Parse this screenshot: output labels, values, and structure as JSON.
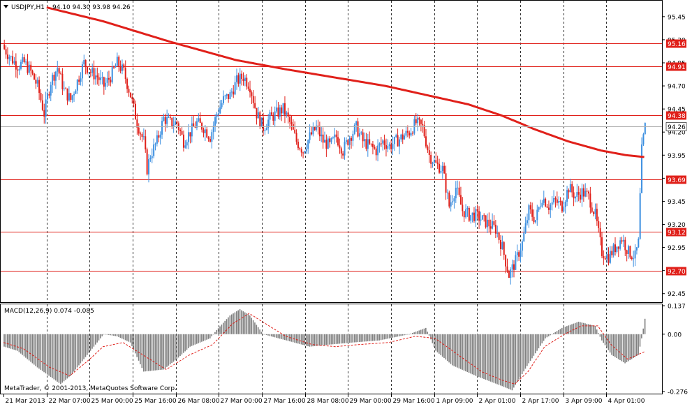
{
  "header": {
    "symbol": "USDJPY,H1",
    "ohlc": "94.10 94.30 93.98 94.26"
  },
  "macd_header": "MACD(12,26,9) 0.074 -0.085",
  "copyright": "MetaTrader, © 2001-2013, MetaQuotes Software Corp.",
  "colors": {
    "up_candle": "#3c8fe0",
    "down_candle": "#e0201a",
    "moving_average": "#e0201a",
    "level_line": "#e0201a",
    "histogram": "#808080",
    "signal_line": "#e0201a",
    "separator": "#000000"
  },
  "chart_data": [
    {
      "type": "candlestick",
      "symbol": "USDJPY",
      "timeframe": "H1",
      "ylim": [
        92.38,
        95.6
      ],
      "y_ticks": [
        "95.45",
        "95.20",
        "94.95",
        "94.70",
        "94.45",
        "94.20",
        "93.95",
        "93.70",
        "93.45",
        "93.20",
        "92.95",
        "92.70",
        "92.45"
      ],
      "x_labels": [
        "21 Mar 2013",
        "22 Mar 07:00",
        "25 Mar 00:00",
        "25 Mar 16:00",
        "26 Mar 08:00",
        "27 Mar 00:00",
        "27 Mar 16:00",
        "28 Mar 08:00",
        "29 Mar 00:00",
        "29 Mar 16:00",
        "1 Apr 09:00",
        "2 Apr 01:00",
        "2 Apr 17:00",
        "3 Apr 09:00",
        "4 Apr 01:00"
      ],
      "horizontal_levels": [
        "95.16",
        "94.91",
        "94.38",
        "93.69",
        "93.12",
        "92.70"
      ],
      "current_price": "94.26",
      "close_path": [
        [
          0,
          95.1
        ],
        [
          4,
          95.0
        ],
        [
          8,
          94.92
        ],
        [
          12,
          94.95
        ],
        [
          16,
          94.85
        ],
        [
          20,
          94.7
        ],
        [
          24,
          94.4
        ],
        [
          28,
          94.75
        ],
        [
          32,
          94.9
        ],
        [
          36,
          94.65
        ],
        [
          40,
          94.55
        ],
        [
          44,
          94.75
        ],
        [
          48,
          94.95
        ],
        [
          52,
          94.85
        ],
        [
          56,
          94.8
        ],
        [
          60,
          94.7
        ],
        [
          64,
          94.8
        ],
        [
          68,
          94.95
        ],
        [
          72,
          94.85
        ],
        [
          76,
          94.6
        ],
        [
          80,
          94.3
        ],
        [
          84,
          94.1
        ],
        [
          86,
          93.8
        ],
        [
          88,
          93.95
        ],
        [
          92,
          94.1
        ],
        [
          96,
          94.35
        ],
        [
          100,
          94.3
        ],
        [
          104,
          94.3
        ],
        [
          108,
          94.1
        ],
        [
          112,
          94.2
        ],
        [
          116,
          94.3
        ],
        [
          120,
          94.25
        ],
        [
          124,
          94.15
        ],
        [
          128,
          94.4
        ],
        [
          132,
          94.55
        ],
        [
          136,
          94.6
        ],
        [
          140,
          94.75
        ],
        [
          144,
          94.8
        ],
        [
          148,
          94.7
        ],
        [
          152,
          94.4
        ],
        [
          156,
          94.25
        ],
        [
          160,
          94.35
        ],
        [
          164,
          94.4
        ],
        [
          168,
          94.45
        ],
        [
          172,
          94.3
        ],
        [
          176,
          94.1
        ],
        [
          180,
          94.0
        ],
        [
          184,
          94.15
        ],
        [
          188,
          94.25
        ],
        [
          192,
          94.1
        ],
        [
          196,
          94.05
        ],
        [
          200,
          94.15
        ],
        [
          204,
          94.0
        ],
        [
          208,
          94.15
        ],
        [
          212,
          94.25
        ],
        [
          216,
          94.1
        ],
        [
          220,
          94.05
        ],
        [
          224,
          94.0
        ],
        [
          228,
          94.1
        ],
        [
          232,
          94.05
        ],
        [
          236,
          94.1
        ],
        [
          240,
          94.15
        ],
        [
          244,
          94.2
        ],
        [
          248,
          94.3
        ],
        [
          252,
          94.25
        ],
        [
          256,
          93.95
        ],
        [
          260,
          93.85
        ],
        [
          264,
          93.8
        ],
        [
          268,
          93.4
        ],
        [
          272,
          93.6
        ],
        [
          276,
          93.35
        ],
        [
          280,
          93.3
        ],
        [
          284,
          93.3
        ],
        [
          288,
          93.25
        ],
        [
          292,
          93.2
        ],
        [
          296,
          93.15
        ],
        [
          300,
          92.95
        ],
        [
          304,
          92.65
        ],
        [
          308,
          92.8
        ],
        [
          312,
          93.0
        ],
        [
          316,
          93.35
        ],
        [
          320,
          93.25
        ],
        [
          324,
          93.5
        ],
        [
          328,
          93.4
        ],
        [
          332,
          93.45
        ],
        [
          336,
          93.4
        ],
        [
          340,
          93.6
        ],
        [
          344,
          93.5
        ],
        [
          348,
          93.55
        ],
        [
          352,
          93.5
        ],
        [
          356,
          93.3
        ],
        [
          360,
          92.9
        ],
        [
          364,
          92.85
        ],
        [
          368,
          92.95
        ],
        [
          372,
          93.05
        ],
        [
          376,
          92.9
        ],
        [
          380,
          92.85
        ],
        [
          382,
          93.0
        ],
        [
          384,
          94.0
        ],
        [
          386,
          94.26
        ]
      ],
      "moving_average_path": [
        [
          26,
          95.55
        ],
        [
          60,
          95.4
        ],
        [
          100,
          95.18
        ],
        [
          140,
          94.98
        ],
        [
          170,
          94.88
        ],
        [
          210,
          94.76
        ],
        [
          230,
          94.7
        ],
        [
          250,
          94.62
        ],
        [
          280,
          94.5
        ],
        [
          300,
          94.38
        ],
        [
          320,
          94.23
        ],
        [
          340,
          94.1
        ],
        [
          360,
          94.0
        ],
        [
          375,
          93.95
        ],
        [
          386,
          93.93
        ]
      ]
    },
    {
      "type": "macd",
      "title": "MACD(12,26,9) 0.074 -0.085",
      "parameters": [
        12,
        26,
        9
      ],
      "main_value": 0.074,
      "signal_value": -0.085,
      "ylim": [
        -0.276,
        0.137
      ],
      "y_ticks": [
        "0.137",
        "0.00",
        "-0.276"
      ],
      "histogram_path": [
        [
          0,
          -0.06
        ],
        [
          8,
          -0.08
        ],
        [
          20,
          -0.16
        ],
        [
          34,
          -0.24
        ],
        [
          40,
          -0.2
        ],
        [
          52,
          -0.08
        ],
        [
          60,
          0.0
        ],
        [
          68,
          -0.01
        ],
        [
          76,
          -0.04
        ],
        [
          84,
          -0.18
        ],
        [
          96,
          -0.17
        ],
        [
          104,
          -0.12
        ],
        [
          112,
          -0.06
        ],
        [
          124,
          -0.02
        ],
        [
          128,
          0.02
        ],
        [
          136,
          0.09
        ],
        [
          142,
          0.12
        ],
        [
          148,
          0.09
        ],
        [
          156,
          0.0
        ],
        [
          170,
          -0.03
        ],
        [
          184,
          -0.06
        ],
        [
          196,
          -0.05
        ],
        [
          210,
          -0.04
        ],
        [
          226,
          -0.03
        ],
        [
          244,
          0.0
        ],
        [
          254,
          0.03
        ],
        [
          260,
          -0.08
        ],
        [
          270,
          -0.15
        ],
        [
          284,
          -0.2
        ],
        [
          300,
          -0.25
        ],
        [
          306,
          -0.27
        ],
        [
          316,
          -0.14
        ],
        [
          326,
          -0.02
        ],
        [
          336,
          0.03
        ],
        [
          346,
          0.06
        ],
        [
          356,
          0.04
        ],
        [
          360,
          -0.03
        ],
        [
          366,
          -0.1
        ],
        [
          374,
          -0.14
        ],
        [
          382,
          -0.1
        ],
        [
          384,
          -0.02
        ],
        [
          386,
          0.074
        ]
      ],
      "signal_path": [
        [
          0,
          -0.04
        ],
        [
          12,
          -0.07
        ],
        [
          28,
          -0.16
        ],
        [
          40,
          -0.2
        ],
        [
          52,
          -0.12
        ],
        [
          60,
          -0.06
        ],
        [
          72,
          -0.04
        ],
        [
          84,
          -0.1
        ],
        [
          98,
          -0.17
        ],
        [
          112,
          -0.1
        ],
        [
          126,
          -0.05
        ],
        [
          138,
          0.05
        ],
        [
          148,
          0.1
        ],
        [
          158,
          0.05
        ],
        [
          170,
          -0.01
        ],
        [
          186,
          -0.05
        ],
        [
          200,
          -0.06
        ],
        [
          214,
          -0.05
        ],
        [
          232,
          -0.04
        ],
        [
          248,
          -0.01
        ],
        [
          260,
          -0.02
        ],
        [
          274,
          -0.1
        ],
        [
          288,
          -0.18
        ],
        [
          300,
          -0.22
        ],
        [
          308,
          -0.24
        ],
        [
          316,
          -0.18
        ],
        [
          326,
          -0.06
        ],
        [
          338,
          0.0
        ],
        [
          348,
          0.04
        ],
        [
          358,
          0.04
        ],
        [
          366,
          -0.05
        ],
        [
          376,
          -0.12
        ],
        [
          386,
          -0.085
        ]
      ]
    }
  ]
}
